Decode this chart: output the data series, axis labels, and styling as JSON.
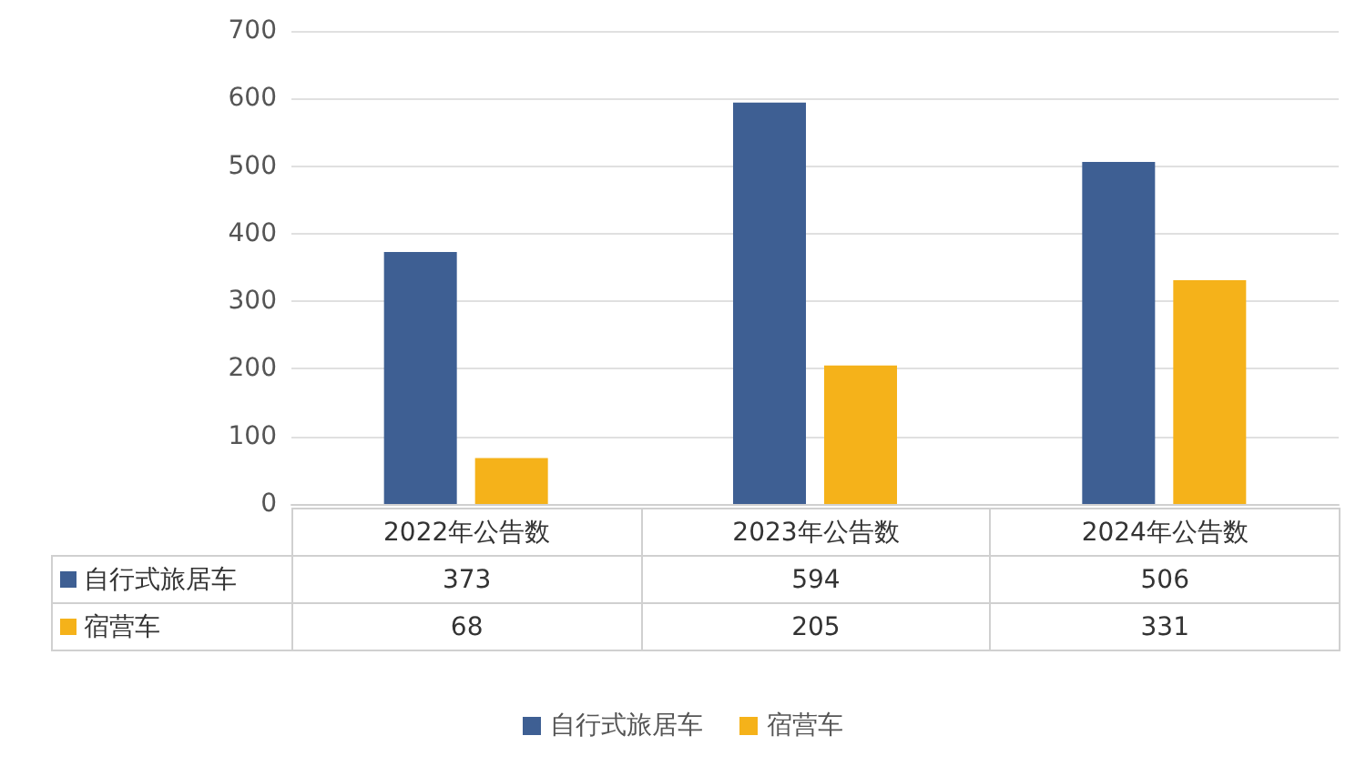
{
  "chart_data": {
    "type": "bar",
    "categories": [
      "2022年公告数",
      "2023年公告数",
      "2024年公告数"
    ],
    "series": [
      {
        "name": "自行式旅居车",
        "color": "#3e5f93",
        "values": [
          373,
          594,
          506
        ]
      },
      {
        "name": "宿营车",
        "color": "#f5b21a",
        "values": [
          68,
          205,
          331
        ]
      }
    ],
    "ylim": [
      0,
      700
    ],
    "yticks": [
      0,
      100,
      200,
      300,
      400,
      500,
      600,
      700
    ],
    "grid": "y",
    "legend": "bottom",
    "data_labels": true
  }
}
